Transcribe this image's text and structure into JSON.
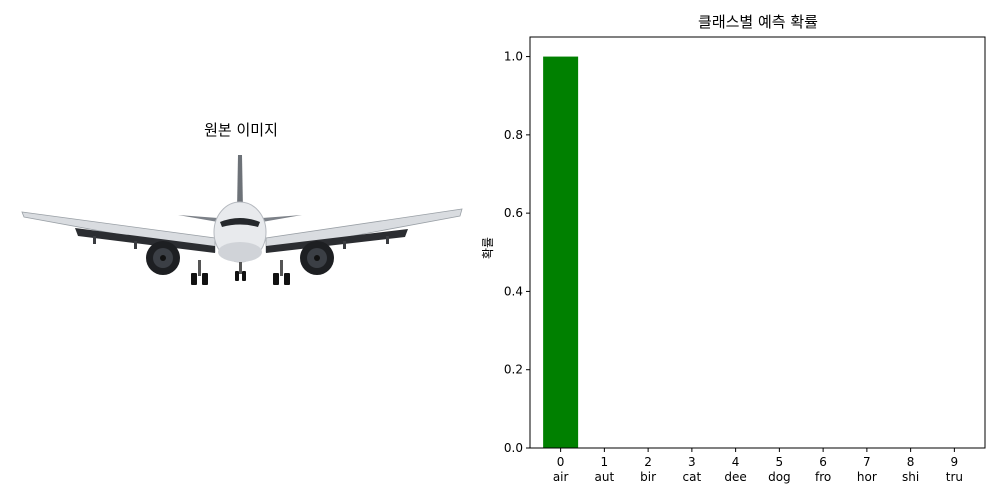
{
  "left_panel": {
    "title": "원본 이미지",
    "image_subject": "airplane-front-view"
  },
  "chart_data": {
    "type": "bar",
    "title": "클래스별 예측 확률",
    "xlabel": "",
    "ylabel": "확률",
    "categories": [
      "0\nair",
      "1\naut",
      "2\nbir",
      "3\ncat",
      "4\ndee",
      "5\ndog",
      "6\nfro",
      "7\nhor",
      "8\nshi",
      "9\ntru"
    ],
    "category_index": [
      "0",
      "1",
      "2",
      "3",
      "4",
      "5",
      "6",
      "7",
      "8",
      "9"
    ],
    "category_abbrev": [
      "air",
      "aut",
      "bir",
      "cat",
      "dee",
      "dog",
      "fro",
      "hor",
      "shi",
      "tru"
    ],
    "values": [
      1.0,
      0.0,
      0.0,
      0.0,
      0.0,
      0.0,
      0.0,
      0.0,
      0.0,
      0.0
    ],
    "ylim": [
      0,
      1.05
    ],
    "yticks": [
      "0.0",
      "0.2",
      "0.4",
      "0.6",
      "0.8",
      "1.0"
    ],
    "bar_color": "#008000",
    "grid": false,
    "legend": "none"
  }
}
